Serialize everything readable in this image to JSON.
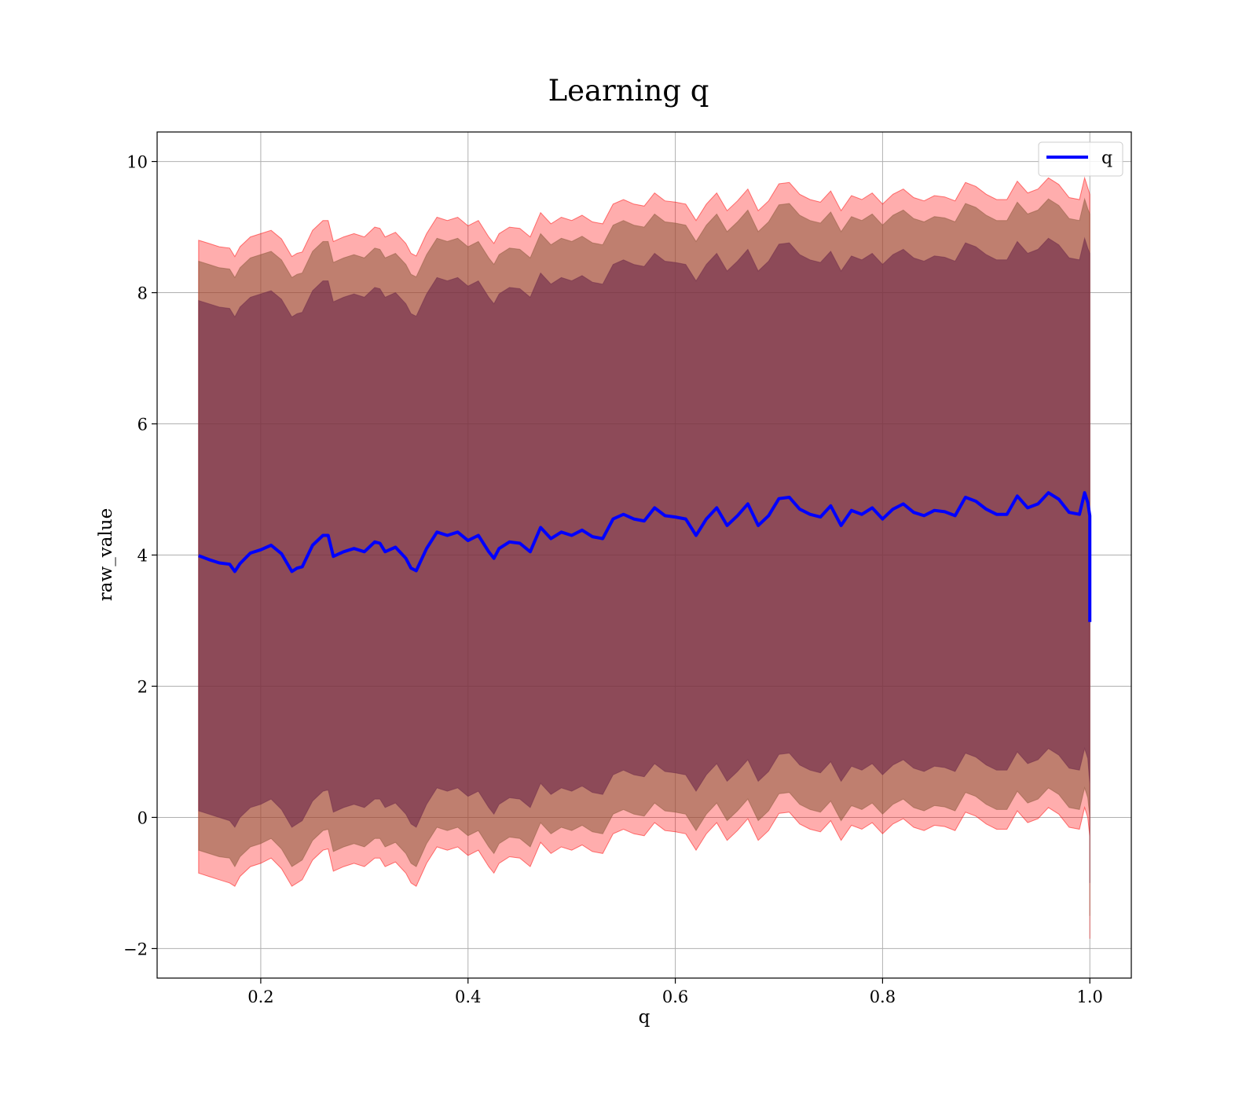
{
  "chart_data": {
    "type": "line",
    "title": "Learning q",
    "xlabel": "q",
    "ylabel": "raw_value",
    "xlim": [
      0.1,
      1.04
    ],
    "ylim": [
      -2.45,
      10.45
    ],
    "x_ticks": [
      0.2,
      0.4,
      0.6,
      0.8,
      1.0
    ],
    "x_tick_labels": [
      "0.2",
      "0.4",
      "0.6",
      "0.8",
      "1.0"
    ],
    "y_ticks": [
      -2,
      0,
      2,
      4,
      6,
      8,
      10
    ],
    "y_tick_labels": [
      "−2",
      "0",
      "2",
      "4",
      "6",
      "8",
      "10"
    ],
    "grid": true,
    "legend_position": "top-right",
    "colors": {
      "line": "#0000ff",
      "band_outer": "#ff0000",
      "band_middle": "#8b5a3c",
      "band_inner": "#6e2a4a",
      "grid": "#b0b0b0"
    },
    "series": [
      {
        "name": "q",
        "style": "line",
        "x": [
          0.14,
          0.15,
          0.16,
          0.17,
          0.175,
          0.18,
          0.19,
          0.2,
          0.21,
          0.22,
          0.23,
          0.235,
          0.24,
          0.25,
          0.26,
          0.265,
          0.27,
          0.28,
          0.29,
          0.3,
          0.31,
          0.315,
          0.32,
          0.33,
          0.34,
          0.345,
          0.35,
          0.36,
          0.37,
          0.38,
          0.39,
          0.4,
          0.41,
          0.42,
          0.425,
          0.43,
          0.44,
          0.45,
          0.46,
          0.47,
          0.48,
          0.49,
          0.5,
          0.51,
          0.52,
          0.53,
          0.54,
          0.55,
          0.56,
          0.57,
          0.58,
          0.59,
          0.6,
          0.61,
          0.62,
          0.63,
          0.64,
          0.65,
          0.66,
          0.67,
          0.68,
          0.69,
          0.7,
          0.71,
          0.72,
          0.73,
          0.74,
          0.75,
          0.76,
          0.77,
          0.78,
          0.79,
          0.8,
          0.81,
          0.82,
          0.83,
          0.84,
          0.85,
          0.86,
          0.87,
          0.88,
          0.89,
          0.9,
          0.91,
          0.92,
          0.93,
          0.94,
          0.95,
          0.96,
          0.97,
          0.98,
          0.99,
          0.995,
          0.998,
          1.0,
          1.0
        ],
        "y": [
          3.99,
          3.93,
          3.88,
          3.86,
          3.75,
          3.87,
          4.03,
          4.08,
          4.15,
          4.02,
          3.75,
          3.8,
          3.82,
          4.15,
          4.3,
          4.3,
          3.98,
          4.05,
          4.1,
          4.05,
          4.2,
          4.18,
          4.05,
          4.12,
          3.95,
          3.8,
          3.76,
          4.1,
          4.35,
          4.3,
          4.35,
          4.22,
          4.3,
          4.05,
          3.95,
          4.1,
          4.2,
          4.18,
          4.05,
          4.42,
          4.25,
          4.35,
          4.3,
          4.38,
          4.28,
          4.25,
          4.55,
          4.62,
          4.55,
          4.52,
          4.72,
          4.6,
          4.58,
          4.55,
          4.3,
          4.55,
          4.72,
          4.45,
          4.6,
          4.78,
          4.45,
          4.6,
          4.86,
          4.88,
          4.7,
          4.62,
          4.58,
          4.75,
          4.45,
          4.68,
          4.62,
          4.72,
          4.55,
          4.7,
          4.78,
          4.65,
          4.6,
          4.68,
          4.66,
          4.6,
          4.88,
          4.82,
          4.7,
          4.62,
          4.62,
          4.9,
          4.72,
          4.78,
          4.95,
          4.85,
          4.65,
          4.62,
          4.95,
          4.8,
          4.6,
          2.98
        ]
      },
      {
        "style": "band",
        "level": "outer",
        "x": [
          0.14,
          0.15,
          0.16,
          0.17,
          0.175,
          0.18,
          0.19,
          0.2,
          0.21,
          0.22,
          0.23,
          0.235,
          0.24,
          0.25,
          0.26,
          0.265,
          0.27,
          0.28,
          0.29,
          0.3,
          0.31,
          0.315,
          0.32,
          0.33,
          0.34,
          0.345,
          0.35,
          0.36,
          0.37,
          0.38,
          0.39,
          0.4,
          0.41,
          0.42,
          0.425,
          0.43,
          0.44,
          0.45,
          0.46,
          0.47,
          0.48,
          0.49,
          0.5,
          0.51,
          0.52,
          0.53,
          0.54,
          0.55,
          0.56,
          0.57,
          0.58,
          0.59,
          0.6,
          0.61,
          0.62,
          0.63,
          0.64,
          0.65,
          0.66,
          0.67,
          0.68,
          0.69,
          0.7,
          0.71,
          0.72,
          0.73,
          0.74,
          0.75,
          0.76,
          0.77,
          0.78,
          0.79,
          0.8,
          0.81,
          0.82,
          0.83,
          0.84,
          0.85,
          0.86,
          0.87,
          0.88,
          0.89,
          0.9,
          0.91,
          0.92,
          0.93,
          0.94,
          0.95,
          0.96,
          0.97,
          0.98,
          0.99,
          0.995,
          0.998,
          1.0,
          1.0
        ],
        "lower": [
          -0.85,
          -0.9,
          -0.95,
          -1.0,
          -1.05,
          -0.9,
          -0.75,
          -0.7,
          -0.62,
          -0.78,
          -1.05,
          -1.0,
          -0.95,
          -0.65,
          -0.5,
          -0.48,
          -0.82,
          -0.75,
          -0.7,
          -0.75,
          -0.62,
          -0.62,
          -0.75,
          -0.68,
          -0.85,
          -1.0,
          -1.05,
          -0.7,
          -0.45,
          -0.5,
          -0.45,
          -0.58,
          -0.5,
          -0.75,
          -0.85,
          -0.7,
          -0.6,
          -0.62,
          -0.75,
          -0.38,
          -0.55,
          -0.45,
          -0.5,
          -0.42,
          -0.52,
          -0.55,
          -0.25,
          -0.18,
          -0.25,
          -0.28,
          -0.08,
          -0.2,
          -0.22,
          -0.25,
          -0.5,
          -0.25,
          -0.08,
          -0.35,
          -0.2,
          -0.02,
          -0.35,
          -0.2,
          0.06,
          0.08,
          -0.1,
          -0.18,
          -0.22,
          -0.05,
          -0.35,
          -0.12,
          -0.18,
          -0.08,
          -0.25,
          -0.1,
          -0.02,
          -0.15,
          -0.2,
          -0.12,
          -0.14,
          -0.2,
          0.08,
          0.02,
          -0.1,
          -0.18,
          -0.18,
          0.1,
          -0.08,
          -0.02,
          0.15,
          0.05,
          -0.15,
          -0.18,
          0.15,
          0.0,
          -0.3,
          -1.85
        ],
        "upper": [
          8.8,
          8.75,
          8.7,
          8.68,
          8.55,
          8.7,
          8.85,
          8.9,
          8.95,
          8.82,
          8.55,
          8.6,
          8.62,
          8.95,
          9.1,
          9.1,
          8.78,
          8.85,
          8.9,
          8.85,
          9.0,
          8.98,
          8.85,
          8.92,
          8.75,
          8.6,
          8.56,
          8.9,
          9.15,
          9.1,
          9.15,
          9.02,
          9.1,
          8.85,
          8.75,
          8.9,
          9.0,
          8.98,
          8.85,
          9.22,
          9.05,
          9.15,
          9.1,
          9.18,
          9.08,
          9.05,
          9.35,
          9.42,
          9.35,
          9.32,
          9.52,
          9.4,
          9.38,
          9.35,
          9.1,
          9.35,
          9.52,
          9.25,
          9.4,
          9.58,
          9.25,
          9.4,
          9.66,
          9.68,
          9.5,
          9.42,
          9.38,
          9.55,
          9.25,
          9.48,
          9.42,
          9.52,
          9.35,
          9.5,
          9.58,
          9.45,
          9.4,
          9.48,
          9.46,
          9.4,
          9.68,
          9.62,
          9.5,
          9.42,
          9.42,
          9.7,
          9.52,
          9.58,
          9.75,
          9.65,
          9.45,
          9.42,
          9.75,
          9.6,
          9.5,
          9.5
        ]
      },
      {
        "style": "band",
        "level": "middle",
        "x": [
          0.14,
          0.15,
          0.16,
          0.17,
          0.175,
          0.18,
          0.19,
          0.2,
          0.21,
          0.22,
          0.23,
          0.235,
          0.24,
          0.25,
          0.26,
          0.265,
          0.27,
          0.28,
          0.29,
          0.3,
          0.31,
          0.315,
          0.32,
          0.33,
          0.34,
          0.345,
          0.35,
          0.36,
          0.37,
          0.38,
          0.39,
          0.4,
          0.41,
          0.42,
          0.425,
          0.43,
          0.44,
          0.45,
          0.46,
          0.47,
          0.48,
          0.49,
          0.5,
          0.51,
          0.52,
          0.53,
          0.54,
          0.55,
          0.56,
          0.57,
          0.58,
          0.59,
          0.6,
          0.61,
          0.62,
          0.63,
          0.64,
          0.65,
          0.66,
          0.67,
          0.68,
          0.69,
          0.7,
          0.71,
          0.72,
          0.73,
          0.74,
          0.75,
          0.76,
          0.77,
          0.78,
          0.79,
          0.8,
          0.81,
          0.82,
          0.83,
          0.84,
          0.85,
          0.86,
          0.87,
          0.88,
          0.89,
          0.9,
          0.91,
          0.92,
          0.93,
          0.94,
          0.95,
          0.96,
          0.97,
          0.98,
          0.99,
          0.995,
          0.998,
          1.0,
          1.0
        ],
        "lower": [
          -0.5,
          -0.55,
          -0.6,
          -0.62,
          -0.75,
          -0.6,
          -0.45,
          -0.4,
          -0.32,
          -0.48,
          -0.75,
          -0.7,
          -0.65,
          -0.35,
          -0.2,
          -0.18,
          -0.52,
          -0.45,
          -0.4,
          -0.45,
          -0.32,
          -0.32,
          -0.45,
          -0.38,
          -0.55,
          -0.7,
          -0.75,
          -0.4,
          -0.15,
          -0.2,
          -0.15,
          -0.28,
          -0.2,
          -0.45,
          -0.55,
          -0.4,
          -0.3,
          -0.32,
          -0.45,
          -0.08,
          -0.25,
          -0.15,
          -0.2,
          -0.12,
          -0.22,
          -0.25,
          0.05,
          0.12,
          0.05,
          0.02,
          0.22,
          0.1,
          0.08,
          0.05,
          -0.2,
          0.05,
          0.22,
          -0.05,
          0.1,
          0.28,
          -0.05,
          0.1,
          0.36,
          0.38,
          0.2,
          0.12,
          0.08,
          0.25,
          -0.05,
          0.18,
          0.12,
          0.22,
          0.05,
          0.2,
          0.28,
          0.15,
          0.1,
          0.18,
          0.16,
          0.1,
          0.38,
          0.32,
          0.2,
          0.12,
          0.12,
          0.4,
          0.22,
          0.28,
          0.45,
          0.35,
          0.15,
          0.12,
          0.45,
          0.3,
          0.0,
          -1.5
        ],
        "upper": [
          8.48,
          8.43,
          8.38,
          8.36,
          8.23,
          8.38,
          8.53,
          8.58,
          8.63,
          8.5,
          8.23,
          8.28,
          8.3,
          8.63,
          8.78,
          8.78,
          8.46,
          8.53,
          8.58,
          8.53,
          8.68,
          8.66,
          8.53,
          8.6,
          8.43,
          8.28,
          8.24,
          8.58,
          8.83,
          8.78,
          8.83,
          8.7,
          8.78,
          8.53,
          8.43,
          8.58,
          8.68,
          8.66,
          8.53,
          8.9,
          8.73,
          8.83,
          8.78,
          8.86,
          8.76,
          8.73,
          9.03,
          9.1,
          9.03,
          9.0,
          9.2,
          9.08,
          9.06,
          9.03,
          8.78,
          9.03,
          9.2,
          8.93,
          9.08,
          9.26,
          8.93,
          9.08,
          9.34,
          9.36,
          9.18,
          9.1,
          9.06,
          9.23,
          8.93,
          9.16,
          9.1,
          9.2,
          9.03,
          9.18,
          9.26,
          9.13,
          9.08,
          9.16,
          9.14,
          9.08,
          9.36,
          9.3,
          9.18,
          9.1,
          9.1,
          9.38,
          9.2,
          9.26,
          9.43,
          9.33,
          9.13,
          9.1,
          9.43,
          9.28,
          9.2,
          9.2
        ]
      },
      {
        "style": "band",
        "level": "inner",
        "x": [
          0.14,
          0.15,
          0.16,
          0.17,
          0.175,
          0.18,
          0.19,
          0.2,
          0.21,
          0.22,
          0.23,
          0.235,
          0.24,
          0.25,
          0.26,
          0.265,
          0.27,
          0.28,
          0.29,
          0.3,
          0.31,
          0.315,
          0.32,
          0.33,
          0.34,
          0.345,
          0.35,
          0.36,
          0.37,
          0.38,
          0.39,
          0.4,
          0.41,
          0.42,
          0.425,
          0.43,
          0.44,
          0.45,
          0.46,
          0.47,
          0.48,
          0.49,
          0.5,
          0.51,
          0.52,
          0.53,
          0.54,
          0.55,
          0.56,
          0.57,
          0.58,
          0.59,
          0.6,
          0.61,
          0.62,
          0.63,
          0.64,
          0.65,
          0.66,
          0.67,
          0.68,
          0.69,
          0.7,
          0.71,
          0.72,
          0.73,
          0.74,
          0.75,
          0.76,
          0.77,
          0.78,
          0.79,
          0.8,
          0.81,
          0.82,
          0.83,
          0.84,
          0.85,
          0.86,
          0.87,
          0.88,
          0.89,
          0.9,
          0.91,
          0.92,
          0.93,
          0.94,
          0.95,
          0.96,
          0.97,
          0.98,
          0.99,
          0.995,
          0.998,
          1.0,
          1.0
        ],
        "lower": [
          0.1,
          0.05,
          0.0,
          -0.05,
          -0.15,
          0.0,
          0.15,
          0.2,
          0.28,
          0.12,
          -0.15,
          -0.1,
          -0.05,
          0.25,
          0.4,
          0.42,
          0.08,
          0.15,
          0.2,
          0.15,
          0.28,
          0.28,
          0.15,
          0.22,
          0.05,
          -0.1,
          -0.15,
          0.2,
          0.45,
          0.4,
          0.45,
          0.32,
          0.4,
          0.15,
          0.05,
          0.2,
          0.3,
          0.28,
          0.15,
          0.52,
          0.35,
          0.45,
          0.4,
          0.48,
          0.38,
          0.35,
          0.65,
          0.72,
          0.65,
          0.62,
          0.82,
          0.7,
          0.68,
          0.65,
          0.4,
          0.65,
          0.82,
          0.55,
          0.7,
          0.88,
          0.55,
          0.7,
          0.96,
          0.98,
          0.8,
          0.72,
          0.68,
          0.85,
          0.55,
          0.78,
          0.72,
          0.82,
          0.65,
          0.8,
          0.88,
          0.75,
          0.7,
          0.78,
          0.76,
          0.7,
          0.98,
          0.92,
          0.8,
          0.72,
          0.72,
          1.0,
          0.82,
          0.88,
          1.05,
          0.95,
          0.75,
          0.72,
          1.05,
          0.9,
          0.5,
          -1.0
        ],
        "upper": [
          7.88,
          7.83,
          7.78,
          7.76,
          7.63,
          7.78,
          7.93,
          7.98,
          8.03,
          7.9,
          7.63,
          7.68,
          7.7,
          8.03,
          8.18,
          8.18,
          7.86,
          7.93,
          7.98,
          7.93,
          8.08,
          8.06,
          7.93,
          8.0,
          7.83,
          7.68,
          7.64,
          7.98,
          8.23,
          8.18,
          8.23,
          8.1,
          8.18,
          7.93,
          7.83,
          7.98,
          8.08,
          8.06,
          7.93,
          8.3,
          8.13,
          8.23,
          8.18,
          8.26,
          8.16,
          8.13,
          8.43,
          8.5,
          8.43,
          8.4,
          8.6,
          8.48,
          8.46,
          8.43,
          8.18,
          8.43,
          8.6,
          8.33,
          8.48,
          8.66,
          8.33,
          8.48,
          8.74,
          8.76,
          8.58,
          8.5,
          8.46,
          8.63,
          8.33,
          8.56,
          8.5,
          8.6,
          8.43,
          8.58,
          8.66,
          8.53,
          8.48,
          8.56,
          8.54,
          8.48,
          8.76,
          8.7,
          8.58,
          8.5,
          8.5,
          8.78,
          8.6,
          8.66,
          8.83,
          8.73,
          8.53,
          8.5,
          8.83,
          8.68,
          8.6,
          8.6
        ]
      }
    ]
  }
}
